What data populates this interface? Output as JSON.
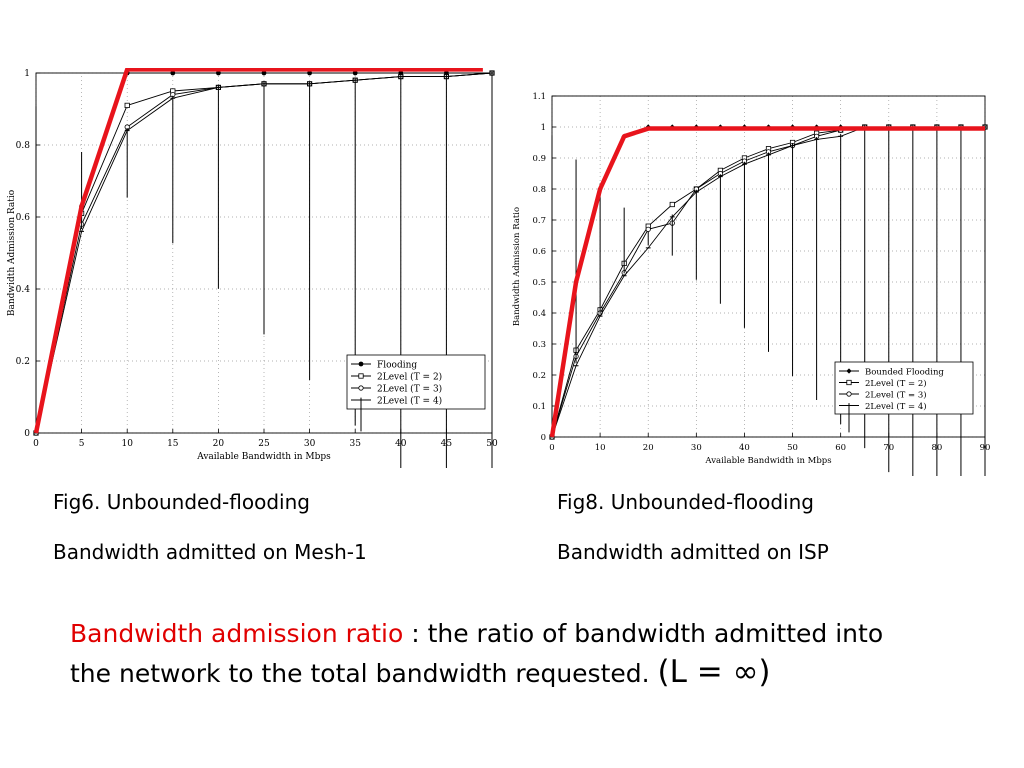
{
  "chart_data": [
    {
      "type": "line",
      "title": "",
      "xlabel": "Available Bandwidth in Mbps",
      "ylabel": "Bandwidth Admission Ratio",
      "xlim": [
        0,
        50
      ],
      "ylim": [
        0,
        1
      ],
      "x_ticks": [
        "0",
        "5",
        "10",
        "15",
        "20",
        "25",
        "30",
        "35",
        "40",
        "45",
        "50"
      ],
      "y_ticks": [
        "0",
        "0.2",
        "0.4",
        "0.6",
        "0.8",
        "1"
      ],
      "grid": "dotted",
      "legend_position": "bottom-right",
      "x": [
        0,
        5,
        10,
        15,
        20,
        25,
        30,
        35,
        40,
        45,
        50
      ],
      "series": [
        {
          "name": "Flooding",
          "marker": "dot",
          "color": "#000000",
          "values": [
            0,
            0.63,
            1.0,
            1.0,
            1.0,
            1.0,
            1.0,
            1.0,
            1.0,
            1.0,
            1.0
          ]
        },
        {
          "name": "2Level (T = 2)",
          "marker": "square",
          "color": "#000000",
          "values": [
            0,
            0.61,
            0.91,
            0.95,
            0.96,
            0.97,
            0.97,
            0.98,
            0.99,
            0.99,
            1.0
          ]
        },
        {
          "name": "2Level (T = 3)",
          "marker": "circle",
          "color": "#000000",
          "values": [
            0,
            0.58,
            0.85,
            0.94,
            0.96,
            0.97,
            0.97,
            0.98,
            0.99,
            0.99,
            1.0
          ]
        },
        {
          "name": "2Level (T = 4)",
          "marker": "star",
          "color": "#000000",
          "values": [
            0,
            0.56,
            0.84,
            0.93,
            0.96,
            0.97,
            0.97,
            0.98,
            0.99,
            0.99,
            1.0
          ]
        }
      ],
      "highlight": {
        "color": "#e8141c",
        "x": [
          0,
          5,
          10,
          49
        ],
        "values": [
          0,
          0.63,
          1.01,
          1.01
        ]
      }
    },
    {
      "type": "line",
      "title": "",
      "xlabel": "Available Bandwidth in Mbps",
      "ylabel": "Bandwidth Admission Ratio",
      "xlim": [
        0,
        90
      ],
      "ylim": [
        0,
        1.1
      ],
      "x_ticks": [
        "0",
        "10",
        "20",
        "30",
        "40",
        "50",
        "60",
        "70",
        "80",
        "90"
      ],
      "y_ticks": [
        "0",
        "0.1",
        "0.2",
        "0.3",
        "0.4",
        "0.5",
        "0.6",
        "0.7",
        "0.8",
        "0.9",
        "1",
        "1.1"
      ],
      "grid": "dotted",
      "legend_position": "bottom-right",
      "x": [
        0,
        5,
        10,
        15,
        20,
        25,
        30,
        35,
        40,
        45,
        50,
        55,
        60,
        65,
        70,
        75,
        80,
        85,
        90
      ],
      "series": [
        {
          "name": "Bounded Flooding",
          "marker": "diamond",
          "color": "#000000",
          "values": [
            0,
            0.5,
            0.8,
            0.97,
            1.0,
            1.0,
            1.0,
            1.0,
            1.0,
            1.0,
            1.0,
            1.0,
            1.0,
            1.0,
            1.0,
            1.0,
            1.0,
            1.0,
            1.0
          ]
        },
        {
          "name": "2Level (T = 2)",
          "marker": "square",
          "color": "#000000",
          "values": [
            0,
            0.28,
            0.41,
            0.56,
            0.68,
            0.75,
            0.8,
            0.86,
            0.9,
            0.93,
            0.95,
            0.98,
            0.99,
            1.0,
            1.0,
            1.0,
            1.0,
            1.0,
            1.0
          ]
        },
        {
          "name": "2Level (T = 3)",
          "marker": "circle",
          "color": "#000000",
          "values": [
            0,
            0.26,
            0.4,
            0.53,
            0.67,
            0.69,
            0.8,
            0.85,
            0.89,
            0.92,
            0.94,
            0.97,
            0.99,
            1.0,
            1.0,
            1.0,
            1.0,
            1.0,
            1.0
          ]
        },
        {
          "name": "2Level (T = 4)",
          "marker": "star",
          "color": "#000000",
          "values": [
            0,
            0.23,
            0.39,
            0.52,
            0.61,
            0.71,
            0.79,
            0.84,
            0.88,
            0.91,
            0.94,
            0.96,
            0.97,
            1.0,
            1.0,
            1.0,
            1.0,
            1.0,
            1.0
          ]
        }
      ],
      "highlight": {
        "color": "#e8141c",
        "x": [
          0,
          5,
          10,
          15,
          20,
          90
        ],
        "values": [
          0,
          0.5,
          0.8,
          0.97,
          0.995,
          0.995
        ]
      }
    }
  ],
  "captions": {
    "fig6_line1": "Fig6. Unbounded-flooding",
    "fig6_line2": "Bandwidth admitted  on Mesh-1",
    "fig8_line1": "Fig8. Unbounded-flooding",
    "fig8_line2": "Bandwidth admitted  on ISP"
  },
  "definition": {
    "term": "Bandwidth admission ratio",
    "text1": " : the ratio of bandwidth admitted into the network to the total bandwidth requested. ",
    "formula": "(L = ∞)",
    "term_color": "#e00000"
  }
}
